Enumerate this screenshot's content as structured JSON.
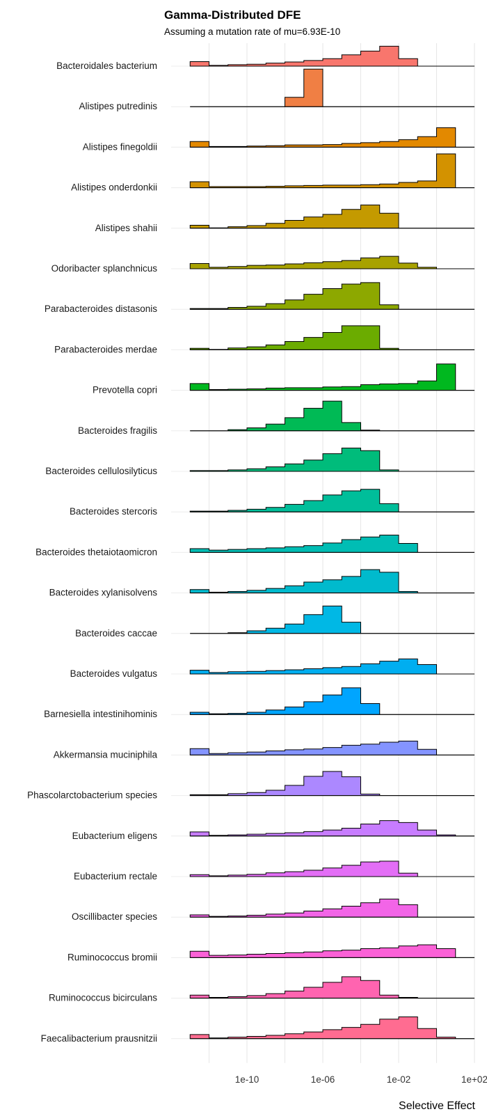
{
  "chart_data": {
    "type": "ridgeline-histogram",
    "title": "Gamma-Distributed DFE",
    "subtitle": "Assuming a mutation rate of mu=6.93E-10",
    "xlabel": "Selective Effect",
    "x_scale": "log10",
    "xlim": [
      "1e-14",
      "1e+02"
    ],
    "x_ticks": [
      "1e-10",
      "1e-06",
      "1e-02",
      "1e+02"
    ],
    "grid": true,
    "bin_edges": [
      "1e-13",
      "1e-12",
      "1e-11",
      "1e-10",
      "1e-09",
      "1e-08",
      "1e-07",
      "1e-06",
      "1e-05",
      "1e-04",
      "1e-03",
      "1e-02",
      "1e-01",
      "1e+00",
      "1e+01",
      "1e+02"
    ],
    "series": [
      {
        "name": "Bacteroidales bacterium",
        "color": "#F8766D",
        "values": [
          0.12,
          0.02,
          0.04,
          0.05,
          0.08,
          0.11,
          0.15,
          0.2,
          0.3,
          0.4,
          0.53,
          0.2,
          0,
          0,
          0
        ]
      },
      {
        "name": "Alistipes putredinis",
        "color": "#F07F44",
        "values": [
          0,
          0,
          0,
          0,
          0,
          0.25,
          1.0,
          0,
          0,
          0,
          0,
          0,
          0,
          0,
          0
        ]
      },
      {
        "name": "Alistipes finegoldii",
        "color": "#E38900",
        "values": [
          0.15,
          0.02,
          0.02,
          0.03,
          0.04,
          0.06,
          0.06,
          0.07,
          0.1,
          0.12,
          0.15,
          0.2,
          0.28,
          0.52,
          0
        ]
      },
      {
        "name": "Alistipes onderdonkii",
        "color": "#D39200",
        "values": [
          0.16,
          0.03,
          0.03,
          0.03,
          0.04,
          0.05,
          0.06,
          0.07,
          0.07,
          0.08,
          0.1,
          0.14,
          0.18,
          0.9,
          0
        ]
      },
      {
        "name": "Alistipes shahii",
        "color": "#C49A00",
        "values": [
          0.08,
          0.01,
          0.04,
          0.07,
          0.13,
          0.21,
          0.3,
          0.37,
          0.5,
          0.62,
          0.4,
          0,
          0,
          0,
          0
        ]
      },
      {
        "name": "Odoribacter splanchnicus",
        "color": "#A8A200",
        "values": [
          0.14,
          0.04,
          0.06,
          0.09,
          0.1,
          0.13,
          0.16,
          0.19,
          0.22,
          0.29,
          0.33,
          0.15,
          0.04,
          0,
          0
        ]
      },
      {
        "name": "Parabacteroides distasonis",
        "color": "#8DA800",
        "values": [
          0.02,
          0.02,
          0.05,
          0.08,
          0.15,
          0.25,
          0.4,
          0.55,
          0.67,
          0.71,
          0.12,
          0,
          0,
          0,
          0
        ]
      },
      {
        "name": "Parabacteroides merdae",
        "color": "#6BAC00",
        "values": [
          0.04,
          0.01,
          0.05,
          0.08,
          0.13,
          0.22,
          0.33,
          0.46,
          0.64,
          0.64,
          0.04,
          0,
          0,
          0,
          0
        ]
      },
      {
        "name": "Prevotella copri",
        "color": "#00B81F",
        "values": [
          0.18,
          0.02,
          0.03,
          0.04,
          0.06,
          0.07,
          0.07,
          0.09,
          0.1,
          0.15,
          0.17,
          0.18,
          0.25,
          0.7,
          0
        ]
      },
      {
        "name": "Bacteroides fragilis",
        "color": "#00BA55",
        "values": [
          0,
          0,
          0.03,
          0.08,
          0.18,
          0.35,
          0.6,
          0.79,
          0.22,
          0.02,
          0,
          0,
          0,
          0,
          0
        ]
      },
      {
        "name": "Bacteroides cellulosilyticus",
        "color": "#00BC7B",
        "values": [
          0.02,
          0.02,
          0.04,
          0.07,
          0.12,
          0.2,
          0.3,
          0.47,
          0.62,
          0.55,
          0.04,
          0,
          0,
          0,
          0
        ]
      },
      {
        "name": "Bacteroides stercoris",
        "color": "#00BE9A",
        "values": [
          0.02,
          0.02,
          0.04,
          0.07,
          0.12,
          0.2,
          0.3,
          0.45,
          0.56,
          0.6,
          0.22,
          0,
          0,
          0,
          0
        ]
      },
      {
        "name": "Bacteroides thetaiotaomicron",
        "color": "#00BDB4",
        "values": [
          0.1,
          0.06,
          0.08,
          0.1,
          0.12,
          0.15,
          0.18,
          0.25,
          0.34,
          0.41,
          0.46,
          0.24,
          0,
          0,
          0
        ]
      },
      {
        "name": "Bacteroides xylanisolvens",
        "color": "#00BACD",
        "values": [
          0.09,
          0.02,
          0.04,
          0.07,
          0.12,
          0.19,
          0.29,
          0.35,
          0.44,
          0.62,
          0.55,
          0.04,
          0,
          0,
          0
        ]
      },
      {
        "name": "Bacteroides caccae",
        "color": "#00B8E5",
        "values": [
          0,
          0,
          0.02,
          0.07,
          0.14,
          0.25,
          0.5,
          0.73,
          0.3,
          0,
          0,
          0,
          0,
          0,
          0
        ]
      },
      {
        "name": "Bacteroides vulgatus",
        "color": "#00AEF0",
        "values": [
          0.1,
          0.04,
          0.06,
          0.07,
          0.09,
          0.11,
          0.14,
          0.17,
          0.2,
          0.27,
          0.34,
          0.4,
          0.25,
          0,
          0
        ]
      },
      {
        "name": "Barnesiella intestinihominis",
        "color": "#00A5FF",
        "values": [
          0.06,
          0.02,
          0.03,
          0.06,
          0.12,
          0.2,
          0.34,
          0.52,
          0.71,
          0.29,
          0,
          0,
          0,
          0,
          0
        ]
      },
      {
        "name": "Akkermansia muciniphila",
        "color": "#8494FF",
        "values": [
          0.17,
          0.04,
          0.06,
          0.08,
          0.11,
          0.14,
          0.16,
          0.2,
          0.26,
          0.29,
          0.34,
          0.37,
          0.15,
          0,
          0
        ]
      },
      {
        "name": "Phascolarctobacterium species",
        "color": "#AC88FF",
        "values": [
          0.02,
          0.02,
          0.05,
          0.08,
          0.14,
          0.27,
          0.51,
          0.64,
          0.5,
          0.04,
          0,
          0,
          0,
          0,
          0
        ]
      },
      {
        "name": "Eubacterium eligens",
        "color": "#C77CFF",
        "values": [
          0.11,
          0.02,
          0.03,
          0.05,
          0.07,
          0.09,
          0.12,
          0.16,
          0.21,
          0.32,
          0.41,
          0.36,
          0.16,
          0.03,
          0
        ]
      },
      {
        "name": "Eubacterium rectale",
        "color": "#E36EF6",
        "values": [
          0.05,
          0.02,
          0.04,
          0.06,
          0.1,
          0.13,
          0.17,
          0.23,
          0.3,
          0.39,
          0.41,
          0.09,
          0,
          0,
          0
        ]
      },
      {
        "name": "Oscillibacter species",
        "color": "#F265E7",
        "values": [
          0.06,
          0.02,
          0.03,
          0.05,
          0.08,
          0.11,
          0.16,
          0.22,
          0.29,
          0.38,
          0.48,
          0.33,
          0,
          0,
          0
        ]
      },
      {
        "name": "Ruminococcus bromii",
        "color": "#FB61D7",
        "values": [
          0.17,
          0.06,
          0.07,
          0.09,
          0.11,
          0.13,
          0.15,
          0.18,
          0.2,
          0.24,
          0.26,
          0.31,
          0.34,
          0.24,
          0
        ]
      },
      {
        "name": "Ruminococcus bicirculans",
        "color": "#FF64B0",
        "values": [
          0.08,
          0.02,
          0.04,
          0.07,
          0.12,
          0.19,
          0.29,
          0.42,
          0.57,
          0.47,
          0.08,
          0.02,
          0,
          0,
          0
        ]
      },
      {
        "name": "Faecalibacterium prausnitzii",
        "color": "#FF6C91",
        "values": [
          0.11,
          0.02,
          0.04,
          0.06,
          0.09,
          0.13,
          0.18,
          0.24,
          0.3,
          0.38,
          0.52,
          0.58,
          0.27,
          0.04,
          0
        ]
      }
    ]
  }
}
